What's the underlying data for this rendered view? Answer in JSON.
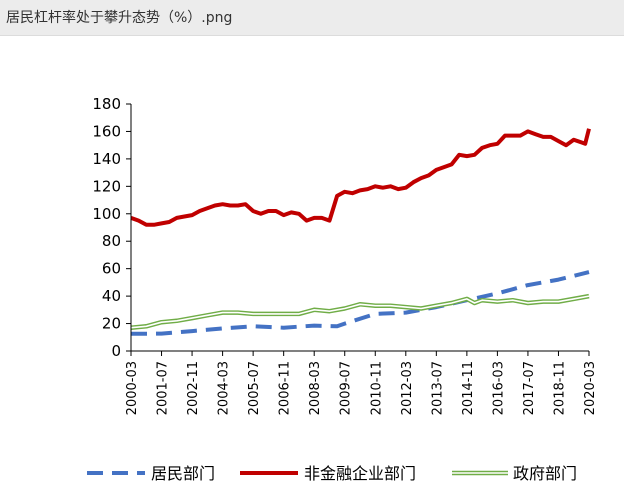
{
  "window": {
    "title": "居民杠杆率处于攀升态势（%）.png"
  },
  "colors": {
    "household": "#4472C4",
    "corporate": "#C00000",
    "government": "#70AD47"
  },
  "chart_data": {
    "type": "line",
    "title": "",
    "xlabel": "",
    "ylabel": "",
    "ylim": [
      0,
      180
    ],
    "yticks": [
      0,
      20,
      40,
      60,
      80,
      100,
      120,
      140,
      160,
      180
    ],
    "xticks": [
      "2000-03",
      "2001-07",
      "2002-11",
      "2004-03",
      "2005-07",
      "2006-11",
      "2008-03",
      "2009-07",
      "2010-11",
      "2012-03",
      "2013-07",
      "2014-11",
      "2016-03",
      "2017-07",
      "2018-11",
      "2020-03"
    ],
    "x_start": "2000-03",
    "x_end": "2020-03",
    "legend_position": "bottom",
    "series": [
      {
        "name": "居民部门",
        "color_key": "household",
        "style": "dashed",
        "points": [
          [
            "2000-03",
            12.5
          ],
          [
            "2001-07",
            12.7
          ],
          [
            "2002-11",
            14.5
          ],
          [
            "2004-03",
            16.5
          ],
          [
            "2005-07",
            18
          ],
          [
            "2006-11",
            17
          ],
          [
            "2008-03",
            18.5
          ],
          [
            "2009-03",
            18
          ],
          [
            "2009-07",
            20
          ],
          [
            "2010-11",
            27
          ],
          [
            "2012-03",
            28
          ],
          [
            "2013-07",
            32
          ],
          [
            "2014-11",
            37
          ],
          [
            "2016-03",
            42
          ],
          [
            "2017-07",
            48
          ],
          [
            "2018-11",
            52
          ],
          [
            "2020-03",
            57.5
          ]
        ]
      },
      {
        "name": "非金融企业部门",
        "color_key": "corporate",
        "style": "solid",
        "points": [
          [
            "2000-03",
            97
          ],
          [
            "2000-07",
            95
          ],
          [
            "2000-11",
            92
          ],
          [
            "2001-03",
            92
          ],
          [
            "2001-07",
            93
          ],
          [
            "2001-11",
            94
          ],
          [
            "2002-03",
            97
          ],
          [
            "2002-07",
            98
          ],
          [
            "2002-11",
            99
          ],
          [
            "2003-03",
            102
          ],
          [
            "2003-07",
            104
          ],
          [
            "2003-11",
            106
          ],
          [
            "2004-03",
            107
          ],
          [
            "2004-07",
            106
          ],
          [
            "2004-11",
            106
          ],
          [
            "2005-03",
            107
          ],
          [
            "2005-07",
            102
          ],
          [
            "2005-11",
            100
          ],
          [
            "2006-03",
            102
          ],
          [
            "2006-07",
            102
          ],
          [
            "2006-11",
            99
          ],
          [
            "2007-03",
            101
          ],
          [
            "2007-07",
            100
          ],
          [
            "2007-11",
            95
          ],
          [
            "2008-03",
            97
          ],
          [
            "2008-07",
            97
          ],
          [
            "2008-11",
            95
          ],
          [
            "2009-03",
            113
          ],
          [
            "2009-07",
            116
          ],
          [
            "2009-11",
            115
          ],
          [
            "2010-03",
            117
          ],
          [
            "2010-07",
            118
          ],
          [
            "2010-11",
            120
          ],
          [
            "2011-03",
            119
          ],
          [
            "2011-07",
            120
          ],
          [
            "2011-11",
            118
          ],
          [
            "2012-03",
            119
          ],
          [
            "2012-07",
            123
          ],
          [
            "2012-11",
            126
          ],
          [
            "2013-03",
            128
          ],
          [
            "2013-07",
            132
          ],
          [
            "2013-11",
            134
          ],
          [
            "2014-03",
            136
          ],
          [
            "2014-07",
            143
          ],
          [
            "2014-11",
            142
          ],
          [
            "2015-03",
            143
          ],
          [
            "2015-07",
            148
          ],
          [
            "2015-11",
            150
          ],
          [
            "2016-03",
            151
          ],
          [
            "2016-07",
            157
          ],
          [
            "2016-11",
            157
          ],
          [
            "2017-03",
            157
          ],
          [
            "2017-07",
            160
          ],
          [
            "2017-11",
            158
          ],
          [
            "2018-03",
            156
          ],
          [
            "2018-07",
            156
          ],
          [
            "2018-11",
            153
          ],
          [
            "2019-03",
            150
          ],
          [
            "2019-07",
            154
          ],
          [
            "2019-11",
            152
          ],
          [
            "2020-01",
            151
          ],
          [
            "2020-03",
            162
          ]
        ]
      },
      {
        "name": "政府部门",
        "color_key": "government",
        "style": "double",
        "points": [
          [
            "2000-03",
            17
          ],
          [
            "2000-11",
            18
          ],
          [
            "2001-07",
            21
          ],
          [
            "2002-03",
            22
          ],
          [
            "2002-11",
            24
          ],
          [
            "2003-07",
            26
          ],
          [
            "2004-03",
            28
          ],
          [
            "2004-11",
            28
          ],
          [
            "2005-07",
            27
          ],
          [
            "2006-03",
            27
          ],
          [
            "2006-11",
            27
          ],
          [
            "2007-07",
            27
          ],
          [
            "2008-03",
            30
          ],
          [
            "2008-11",
            29
          ],
          [
            "2009-07",
            31
          ],
          [
            "2010-03",
            34
          ],
          [
            "2010-11",
            33
          ],
          [
            "2011-07",
            33
          ],
          [
            "2012-03",
            32
          ],
          [
            "2012-11",
            31
          ],
          [
            "2013-07",
            33
          ],
          [
            "2014-03",
            35
          ],
          [
            "2014-11",
            38
          ],
          [
            "2015-03",
            35
          ],
          [
            "2015-07",
            37
          ],
          [
            "2016-03",
            36
          ],
          [
            "2016-11",
            37
          ],
          [
            "2017-07",
            35
          ],
          [
            "2018-03",
            36
          ],
          [
            "2018-11",
            36
          ],
          [
            "2019-07",
            38
          ],
          [
            "2020-03",
            40
          ]
        ]
      }
    ]
  }
}
